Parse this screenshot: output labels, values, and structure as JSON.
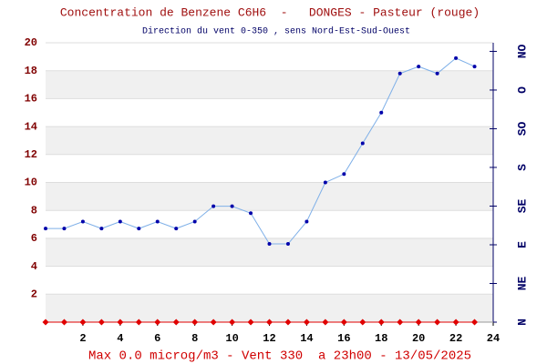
{
  "chart_data": {
    "type": "line",
    "title": "Concentration de Benzene C6H6  -   DONGES - Pasteur (rouge)",
    "subtitle": "Direction du vent 0-350 , sens Nord-Est-Sud-Ouest",
    "annotation": "Max 0.0 microg/m3 - Vent 330  a 23h00 - 13/05/2025",
    "x": [
      0,
      1,
      2,
      3,
      4,
      5,
      6,
      7,
      8,
      9,
      10,
      11,
      12,
      13,
      14,
      15,
      16,
      17,
      18,
      19,
      20,
      21,
      22,
      23
    ],
    "series": [
      {
        "color": "#7fb0e8",
        "marker_color": "#0000aa",
        "marker": "circle",
        "values": [
          6.7,
          6.7,
          7.2,
          6.7,
          7.2,
          6.7,
          7.2,
          6.7,
          7.2,
          8.3,
          8.3,
          7.8,
          5.6,
          5.6,
          7.2,
          10.0,
          10.6,
          12.8,
          15.0,
          17.8,
          18.3,
          17.8,
          18.9,
          18.3
        ]
      },
      {
        "color": "#e00000",
        "marker_color": "#e00000",
        "marker": "diamond",
        "values": [
          0,
          0,
          0,
          0,
          0,
          0,
          0,
          0,
          0,
          0,
          0,
          0,
          0,
          0,
          0,
          0,
          0,
          0,
          0,
          0,
          0,
          0,
          0,
          0
        ]
      }
    ],
    "xlim": [
      0,
      24
    ],
    "xticks": [
      2,
      4,
      6,
      8,
      10,
      12,
      14,
      16,
      18,
      20,
      22,
      24
    ],
    "ylim": [
      0,
      20
    ],
    "yticks": [
      2,
      4,
      6,
      8,
      10,
      12,
      14,
      16,
      18,
      20
    ],
    "y2lim": [
      0,
      325
    ],
    "y2ticks": [
      {
        "value": 0,
        "label": "N"
      },
      {
        "value": 45,
        "label": "NE"
      },
      {
        "value": 90,
        "label": "E"
      },
      {
        "value": 135,
        "label": "SE"
      },
      {
        "value": 180,
        "label": "S"
      },
      {
        "value": 225,
        "label": "SO"
      },
      {
        "value": 270,
        "label": "O"
      },
      {
        "value": 315,
        "label": "NO"
      }
    ],
    "grid": true
  }
}
